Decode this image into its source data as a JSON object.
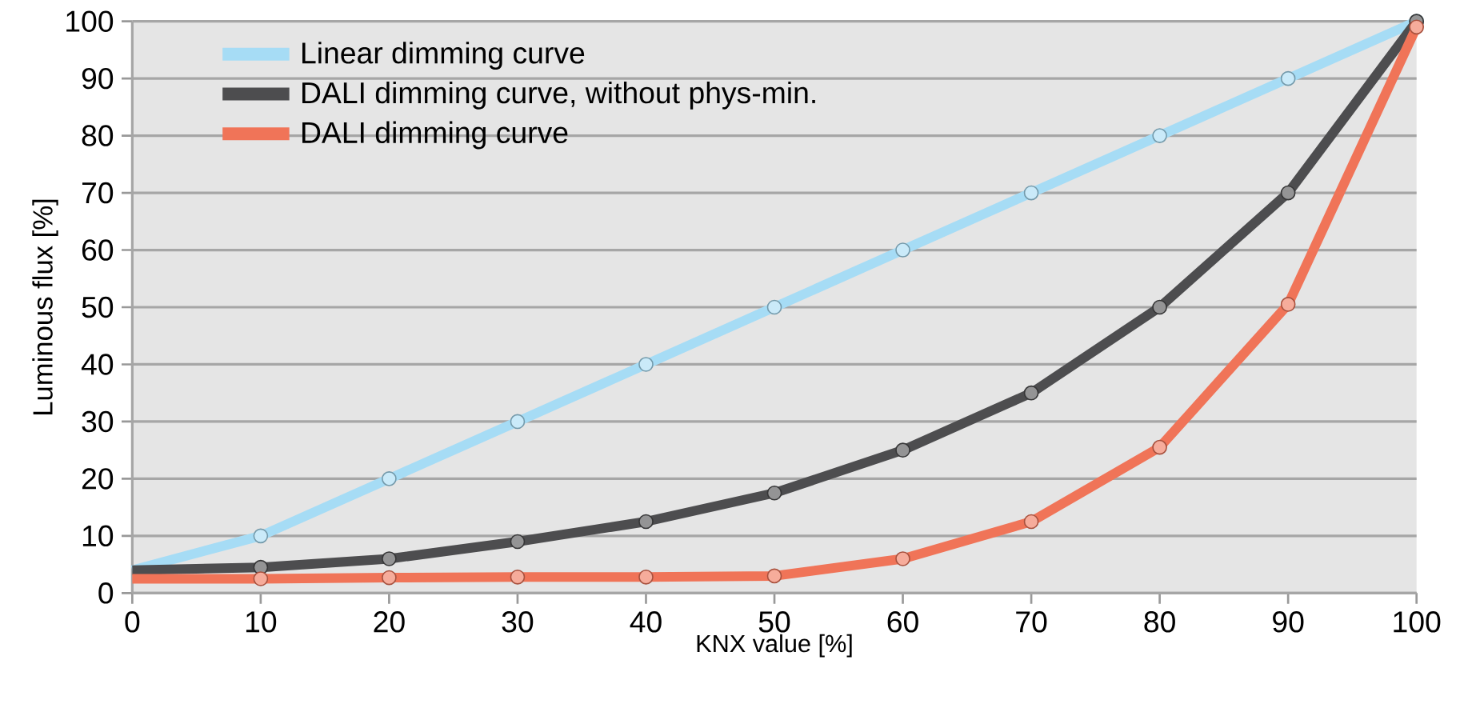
{
  "chart_data": {
    "type": "line",
    "xlabel": "KNX value [%]",
    "ylabel": "Luminous flux [%]",
    "x": [
      0,
      10,
      20,
      30,
      40,
      50,
      60,
      70,
      80,
      90,
      100
    ],
    "series": [
      {
        "name": "Linear dimming curve",
        "color": "#a6dcf5",
        "values": [
          4,
          10,
          20,
          30,
          40,
          50,
          60,
          70,
          80,
          90,
          100
        ]
      },
      {
        "name": "DALI dimming curve, without phys-min.",
        "color": "#4d4d4f",
        "values": [
          4,
          4.5,
          6,
          9,
          12.5,
          17.5,
          25,
          35,
          50,
          70,
          100
        ]
      },
      {
        "name": "DALI dimming curve",
        "color": "#f07458",
        "values": [
          2.5,
          2.5,
          2.7,
          2.8,
          2.8,
          3,
          6,
          12.5,
          25.5,
          50.5,
          99
        ]
      }
    ],
    "xlim": [
      0,
      100
    ],
    "ylim": [
      0,
      100
    ],
    "xticks": [
      0,
      10,
      20,
      30,
      40,
      50,
      60,
      70,
      80,
      90,
      100
    ],
    "yticks": [
      0,
      10,
      20,
      30,
      40,
      50,
      60,
      70,
      80,
      90,
      100
    ],
    "grid": "y",
    "legend": "top left",
    "marker": "circle",
    "line_style": "solid"
  }
}
